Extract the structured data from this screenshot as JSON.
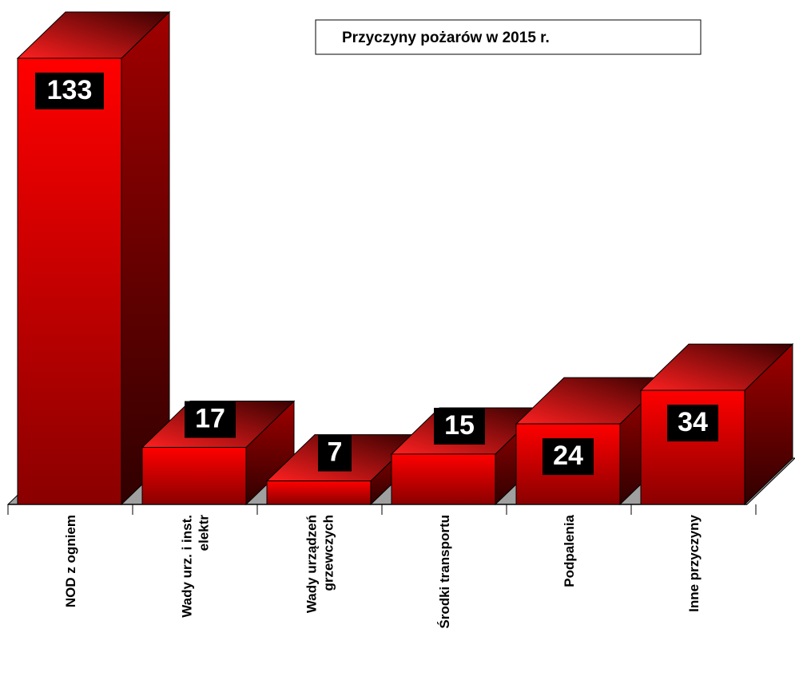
{
  "chart_data": {
    "type": "bar3d",
    "title": "Przyczyny pożarów w 2015 r.",
    "categories": [
      "NOD z ogniem",
      "Wady urz. i inst.\nelektr",
      "Wady urządzeń\ngrzewczych",
      "Środki transportu",
      "Podpalenia",
      "Inne przyczyny"
    ],
    "values": [
      133,
      17,
      7,
      15,
      24,
      34
    ],
    "color": "#ff0000"
  }
}
